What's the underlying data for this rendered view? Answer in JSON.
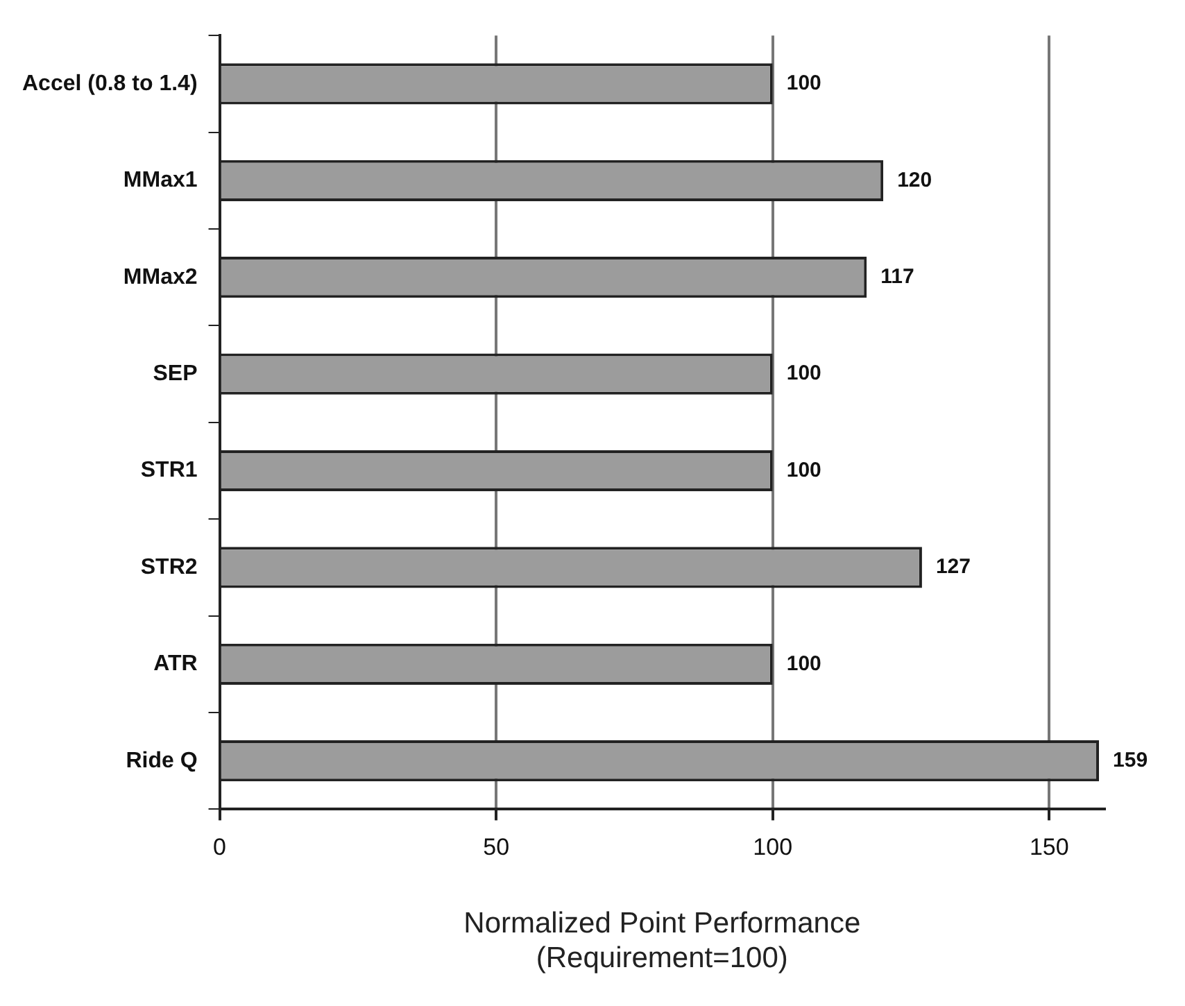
{
  "chart_data": {
    "type": "bar",
    "orientation": "horizontal",
    "categories": [
      "Accel (0.8 to 1.4)",
      "MMax1",
      "MMax2",
      "SEP",
      "STR1",
      "STR2",
      "ATR",
      "Ride Q"
    ],
    "values": [
      100,
      120,
      117,
      100,
      100,
      127,
      100,
      159
    ],
    "color": "#9c9c9c",
    "xlim": [
      0,
      160
    ],
    "xticks": [
      0,
      50,
      100,
      150
    ],
    "grid": "x",
    "data_labels": true,
    "legend": false,
    "xlabel": "Normalized Point Performance\n(Requirement=100)"
  }
}
